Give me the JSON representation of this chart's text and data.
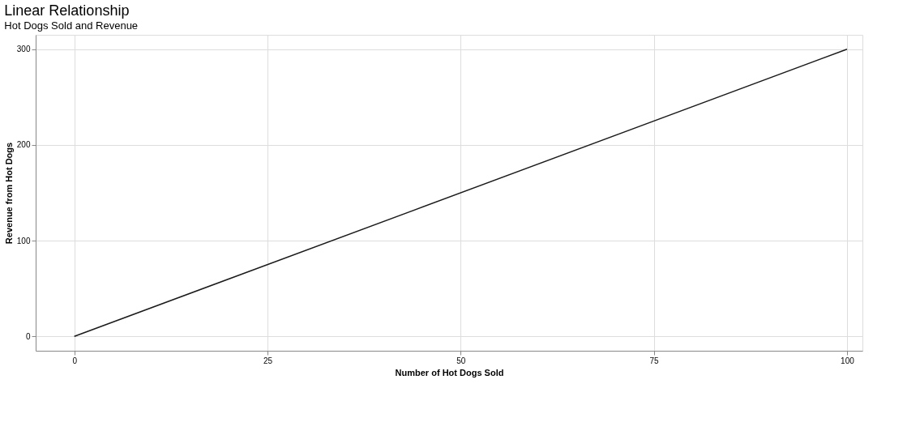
{
  "chart_data": {
    "type": "line",
    "title": "Linear Relationship",
    "subtitle": "Hot Dogs Sold and Revenue",
    "xlabel": "Number of Hot Dogs Sold",
    "ylabel": "Revenue from Hot Dogs",
    "x": [
      0,
      100
    ],
    "series": [
      {
        "color": "#1a1a1a",
        "values": [
          0,
          300
        ]
      }
    ],
    "xlim": [
      -5,
      102
    ],
    "xticks": [
      0,
      25,
      50,
      75,
      100
    ],
    "ylim": [
      -15,
      315
    ],
    "yticks": [
      0,
      100,
      200,
      300
    ],
    "grid": true,
    "legend": false,
    "marker": "none",
    "line_style": "solid"
  }
}
